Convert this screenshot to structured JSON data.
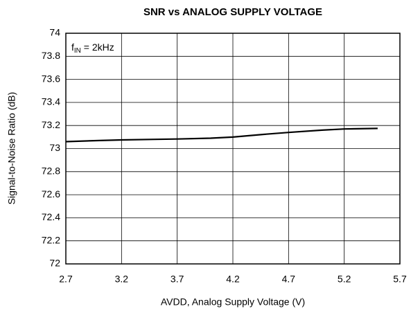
{
  "chart_data": {
    "type": "line",
    "title": "SNR vs ANALOG SUPPLY VOLTAGE",
    "x_label": "AVDD, Analog Supply Voltage (V)",
    "y_label": "Signal-to-Noise Ratio (dB)",
    "annotation": {
      "base": "f",
      "sub": "IN",
      "tail": " = 2kHz"
    },
    "x": [
      2.7,
      3.0,
      3.2,
      3.5,
      3.7,
      4.0,
      4.2,
      4.5,
      4.7,
      5.0,
      5.2,
      5.5
    ],
    "series": [
      {
        "name": "SNR",
        "color": "#000000",
        "values": [
          73.06,
          73.07,
          73.075,
          73.08,
          73.083,
          73.09,
          73.1,
          73.125,
          73.14,
          73.16,
          73.17,
          73.175
        ]
      }
    ],
    "xlim": [
      2.7,
      5.7
    ],
    "xticks": [
      2.7,
      3.2,
      3.7,
      4.2,
      4.7,
      5.2,
      5.7
    ],
    "ylim": [
      72,
      74
    ],
    "yticks": [
      72,
      72.2,
      72.4,
      72.6,
      72.8,
      73,
      73.2,
      73.4,
      73.6,
      73.8,
      74
    ],
    "grid": true
  }
}
